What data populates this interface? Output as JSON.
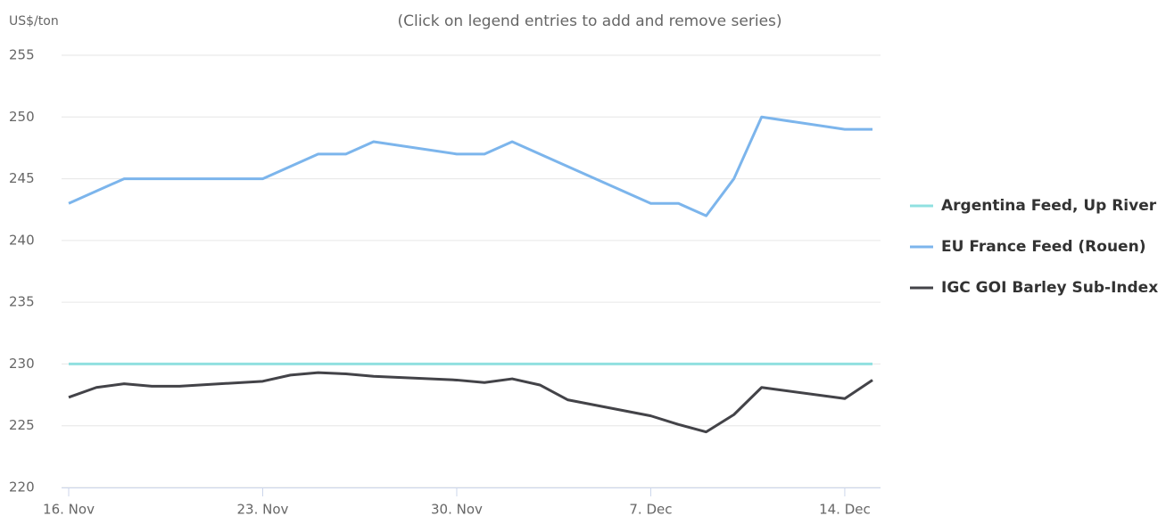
{
  "chart_data": {
    "type": "line",
    "subtitle": "(Click on legend entries to add and remove series)",
    "y_label": "US$/ton",
    "x": [
      "16. Nov",
      "17. Nov",
      "18. Nov",
      "19. Nov",
      "20. Nov",
      "23. Nov",
      "24. Nov",
      "25. Nov",
      "26. Nov",
      "27. Nov",
      "30. Nov",
      "1. Dec",
      "2. Dec",
      "3. Dec",
      "4. Dec",
      "7. Dec",
      "8. Dec",
      "9. Dec",
      "10. Dec",
      "11. Dec",
      "14. Dec",
      "15. Dec"
    ],
    "xlim": [
      "16. Nov",
      "15. Dec"
    ],
    "xticks": [
      "16. Nov",
      "23. Nov",
      "30. Nov",
      "7. Dec",
      "14. Dec"
    ],
    "ylim": [
      220,
      255
    ],
    "yticks": [
      220,
      225,
      230,
      235,
      240,
      245,
      250,
      255
    ],
    "grid": true,
    "legend": "right",
    "series": [
      {
        "name": "Argentina Feed, Up River",
        "color": "#90e0e0",
        "values": [
          230,
          230,
          230,
          230,
          230,
          230,
          230,
          230,
          230,
          230,
          230,
          230,
          230,
          230,
          230,
          230,
          230,
          230,
          230,
          230,
          230,
          230
        ]
      },
      {
        "name": "EU France Feed (Rouen)",
        "color": "#7cb5ec",
        "values": [
          243,
          244,
          245,
          245,
          245,
          245,
          246,
          247,
          247,
          248,
          247,
          247,
          248,
          247,
          246,
          243,
          243,
          242,
          245,
          250,
          249,
          249
        ]
      },
      {
        "name": "IGC GOI Barley Sub-Index",
        "color": "#434348",
        "values": [
          227.3,
          228.1,
          228.4,
          228.2,
          228.2,
          228.6,
          229.1,
          229.3,
          229.2,
          229.0,
          228.7,
          228.5,
          228.8,
          228.3,
          227.1,
          225.8,
          225.1,
          224.5,
          225.9,
          228.1,
          227.2,
          228.7
        ]
      }
    ]
  }
}
